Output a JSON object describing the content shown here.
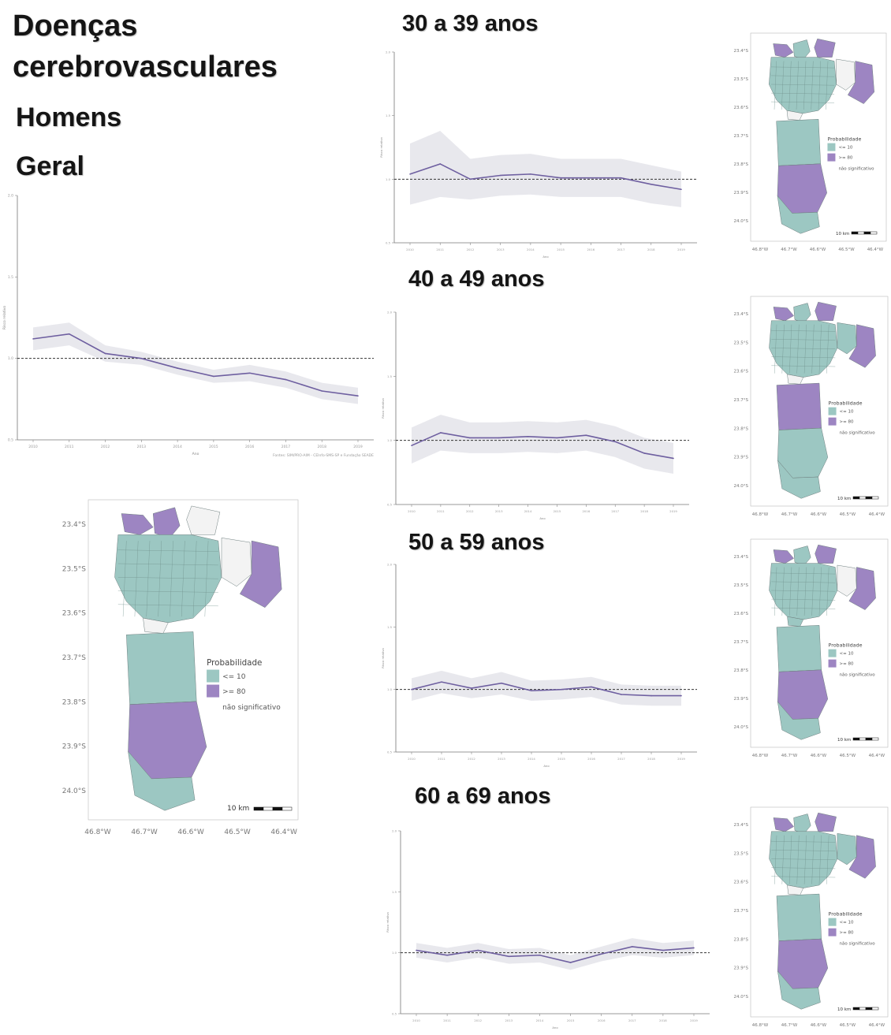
{
  "title_line1": "Doenças",
  "title_line2": "cerebrovasculares",
  "subtitle_sex": "Homens",
  "subtitle_group": "Geral",
  "colors": {
    "low": "#9cc7c2",
    "high": "#9d85c2",
    "ns": "#f3f3f3",
    "line": "#6e5fa0",
    "band": "#e4e4ea",
    "ref": "#333333"
  },
  "map": {
    "legend_title": "Probabilidade",
    "legend_low": "<= 10",
    "legend_high": ">= 80",
    "legend_ns": "não significativo",
    "scale_label": "10 km",
    "lat_labels": [
      "23.4°S",
      "23.5°S",
      "23.6°S",
      "23.7°S",
      "23.8°S",
      "23.9°S",
      "24.0°S"
    ],
    "lon_labels": [
      "46.8°W",
      "46.7°W",
      "46.6°W",
      "46.5°W",
      "46.4°W"
    ]
  },
  "chart_data": [
    {
      "type": "line",
      "panel": "Geral",
      "x": [
        2010,
        2011,
        2012,
        2013,
        2014,
        2015,
        2016,
        2017,
        2018,
        2019
      ],
      "xlabel": "Ano",
      "ylabel": "Risco relativo",
      "ylim": [
        0.5,
        2.0
      ],
      "yticks": [
        0.5,
        1.0,
        1.5,
        2.0
      ],
      "reference_y": 1.0,
      "series": [
        {
          "values": [
            1.12,
            1.15,
            1.03,
            1.0,
            0.94,
            0.89,
            0.91,
            0.87,
            0.8,
            0.77
          ],
          "lower": [
            1.05,
            1.08,
            0.98,
            0.96,
            0.9,
            0.85,
            0.86,
            0.82,
            0.75,
            0.72
          ],
          "upper": [
            1.19,
            1.22,
            1.08,
            1.04,
            0.98,
            0.93,
            0.96,
            0.92,
            0.85,
            0.82
          ]
        }
      ],
      "caption": "Fontes: SIM/PRO-AIM - CEInfo-SMS-SP e Fundação SEADE"
    },
    {
      "type": "line",
      "panel": "30 a 39 anos",
      "x": [
        2010,
        2011,
        2012,
        2013,
        2014,
        2015,
        2016,
        2017,
        2018,
        2019
      ],
      "xlabel": "Ano",
      "ylabel": "Risco relativo",
      "ylim": [
        0.5,
        2.0
      ],
      "yticks": [
        0.5,
        1.0,
        1.5,
        2.0
      ],
      "reference_y": 1.0,
      "series": [
        {
          "values": [
            1.04,
            1.12,
            1.0,
            1.03,
            1.04,
            1.01,
            1.01,
            1.01,
            0.96,
            0.92
          ],
          "lower": [
            0.8,
            0.86,
            0.84,
            0.87,
            0.88,
            0.86,
            0.86,
            0.86,
            0.81,
            0.78
          ],
          "upper": [
            1.28,
            1.38,
            1.16,
            1.19,
            1.2,
            1.16,
            1.16,
            1.16,
            1.11,
            1.06
          ]
        }
      ]
    },
    {
      "type": "line",
      "panel": "40 a 49 anos",
      "x": [
        2010,
        2011,
        2012,
        2013,
        2014,
        2015,
        2016,
        2017,
        2018,
        2019
      ],
      "xlabel": "Ano",
      "ylabel": "Risco relativo",
      "ylim": [
        0.5,
        2.0
      ],
      "yticks": [
        0.5,
        1.0,
        1.5,
        2.0
      ],
      "reference_y": 1.0,
      "series": [
        {
          "values": [
            0.96,
            1.06,
            1.02,
            1.02,
            1.03,
            1.02,
            1.04,
            0.99,
            0.9,
            0.86
          ],
          "lower": [
            0.82,
            0.92,
            0.9,
            0.9,
            0.91,
            0.9,
            0.92,
            0.87,
            0.78,
            0.74
          ],
          "upper": [
            1.1,
            1.2,
            1.14,
            1.14,
            1.15,
            1.14,
            1.16,
            1.11,
            1.02,
            0.98
          ]
        }
      ]
    },
    {
      "type": "line",
      "panel": "50 a 59 anos",
      "x": [
        2010,
        2011,
        2012,
        2013,
        2014,
        2015,
        2016,
        2017,
        2018,
        2019
      ],
      "xlabel": "Ano",
      "ylabel": "Risco relativo",
      "ylim": [
        0.5,
        2.0
      ],
      "yticks": [
        0.5,
        1.0,
        1.5,
        2.0
      ],
      "reference_y": 1.0,
      "series": [
        {
          "values": [
            1.0,
            1.06,
            1.01,
            1.05,
            0.99,
            1.0,
            1.02,
            0.96,
            0.95,
            0.95
          ],
          "lower": [
            0.91,
            0.97,
            0.93,
            0.96,
            0.91,
            0.92,
            0.94,
            0.88,
            0.87,
            0.87
          ],
          "upper": [
            1.09,
            1.15,
            1.09,
            1.14,
            1.07,
            1.08,
            1.1,
            1.04,
            1.03,
            1.03
          ]
        }
      ]
    },
    {
      "type": "line",
      "panel": "60 a 69 anos",
      "x": [
        2010,
        2011,
        2012,
        2013,
        2014,
        2015,
        2016,
        2017,
        2018,
        2019
      ],
      "xlabel": "Ano",
      "ylabel": "Risco relativo",
      "ylim": [
        0.5,
        2.0
      ],
      "yticks": [
        0.5,
        1.0,
        1.5,
        2.0
      ],
      "reference_y": 1.0,
      "series": [
        {
          "values": [
            1.02,
            0.98,
            1.02,
            0.97,
            0.98,
            0.92,
            0.99,
            1.05,
            1.02,
            1.04
          ],
          "lower": [
            0.96,
            0.92,
            0.96,
            0.91,
            0.92,
            0.86,
            0.93,
            0.98,
            0.96,
            0.98
          ],
          "upper": [
            1.08,
            1.04,
            1.08,
            1.03,
            1.04,
            0.98,
            1.05,
            1.12,
            1.08,
            1.1
          ]
        }
      ]
    }
  ],
  "maps": [
    {
      "panel": "Geral",
      "high_regions": [
        "north-w",
        "north-c",
        "east",
        "south"
      ],
      "ns_regions": [
        "north-e",
        "east-inner",
        "center-s"
      ]
    },
    {
      "panel": "30 a 39 anos",
      "high_regions": [
        "north-w",
        "north-e",
        "east",
        "south"
      ],
      "ns_regions": [
        "east-inner",
        "center-s"
      ]
    },
    {
      "panel": "40 a 49 anos",
      "high_regions": [
        "north-w",
        "north-e",
        "east",
        "south-n"
      ],
      "ns_regions": [
        "south-s2",
        "center-s"
      ]
    },
    {
      "panel": "50 a 59 anos",
      "high_regions": [
        "north-w",
        "north-e",
        "east",
        "south"
      ],
      "ns_regions": [
        "east-inner"
      ]
    },
    {
      "panel": "60 a 69 anos",
      "high_regions": [
        "north-w",
        "north-e",
        "east",
        "south"
      ],
      "ns_regions": [
        "center-s"
      ]
    }
  ]
}
